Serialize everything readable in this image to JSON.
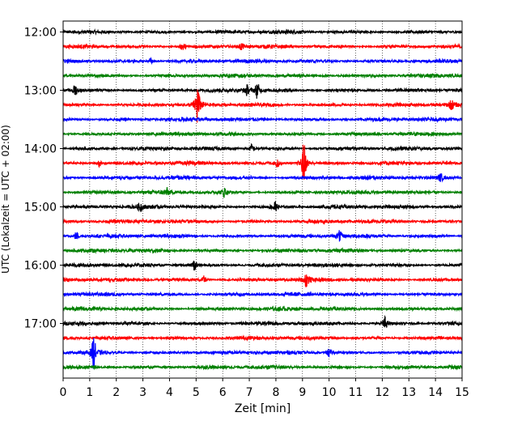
{
  "chart_data": {
    "type": "line",
    "xlabel": "Zeit  [min]",
    "ylabel": "UTC (Lokalzeit = UTC + 02:00)",
    "xlim": [
      0,
      15
    ],
    "x_ticks": [
      "0",
      "1",
      "2",
      "3",
      "4",
      "5",
      "6",
      "7",
      "8",
      "9",
      "10",
      "11",
      "12",
      "13",
      "14",
      "15"
    ],
    "y_tick_labels": [
      "12:00",
      "13:00",
      "14:00",
      "15:00",
      "16:00",
      "17:00"
    ],
    "y_tick_trace_index": [
      0,
      4,
      8,
      12,
      16,
      20
    ],
    "grid": "vertical-dotted",
    "trace_interval_minutes": 15,
    "trace_colors": [
      "#000000",
      "#ff0000",
      "#0000ff",
      "#008000"
    ],
    "trace_count": 24,
    "events": [
      {
        "trace": 1,
        "x": 4.5,
        "amp": 0.25
      },
      {
        "trace": 1,
        "x": 6.7,
        "amp": 0.2
      },
      {
        "trace": 2,
        "x": 3.3,
        "amp": 0.15
      },
      {
        "trace": 4,
        "x": 0.45,
        "amp": 0.3
      },
      {
        "trace": 4,
        "x": 6.9,
        "amp": 0.3
      },
      {
        "trace": 4,
        "x": 7.3,
        "amp": 0.45
      },
      {
        "trace": 5,
        "x": 5.05,
        "amp": 1.2
      },
      {
        "trace": 5,
        "x": 14.6,
        "amp": 0.25
      },
      {
        "trace": 8,
        "x": 7.1,
        "amp": 0.25
      },
      {
        "trace": 9,
        "x": 8.05,
        "amp": 0.25
      },
      {
        "trace": 9,
        "x": 9.05,
        "amp": 1.3
      },
      {
        "trace": 9,
        "x": 1.35,
        "amp": 0.2
      },
      {
        "trace": 10,
        "x": 14.2,
        "amp": 0.2
      },
      {
        "trace": 11,
        "x": 6.05,
        "amp": 0.25
      },
      {
        "trace": 11,
        "x": 3.9,
        "amp": 0.2
      },
      {
        "trace": 12,
        "x": 7.95,
        "amp": 0.35
      },
      {
        "trace": 12,
        "x": 2.9,
        "amp": 0.25
      },
      {
        "trace": 14,
        "x": 10.4,
        "amp": 0.3
      },
      {
        "trace": 14,
        "x": 0.5,
        "amp": 0.25
      },
      {
        "trace": 16,
        "x": 4.95,
        "amp": 0.3
      },
      {
        "trace": 17,
        "x": 9.15,
        "amp": 0.4
      },
      {
        "trace": 17,
        "x": 5.3,
        "amp": 0.2
      },
      {
        "trace": 20,
        "x": 12.1,
        "amp": 0.35
      },
      {
        "trace": 22,
        "x": 1.15,
        "amp": 0.9
      },
      {
        "trace": 22,
        "x": 10.0,
        "amp": 0.25
      }
    ]
  }
}
